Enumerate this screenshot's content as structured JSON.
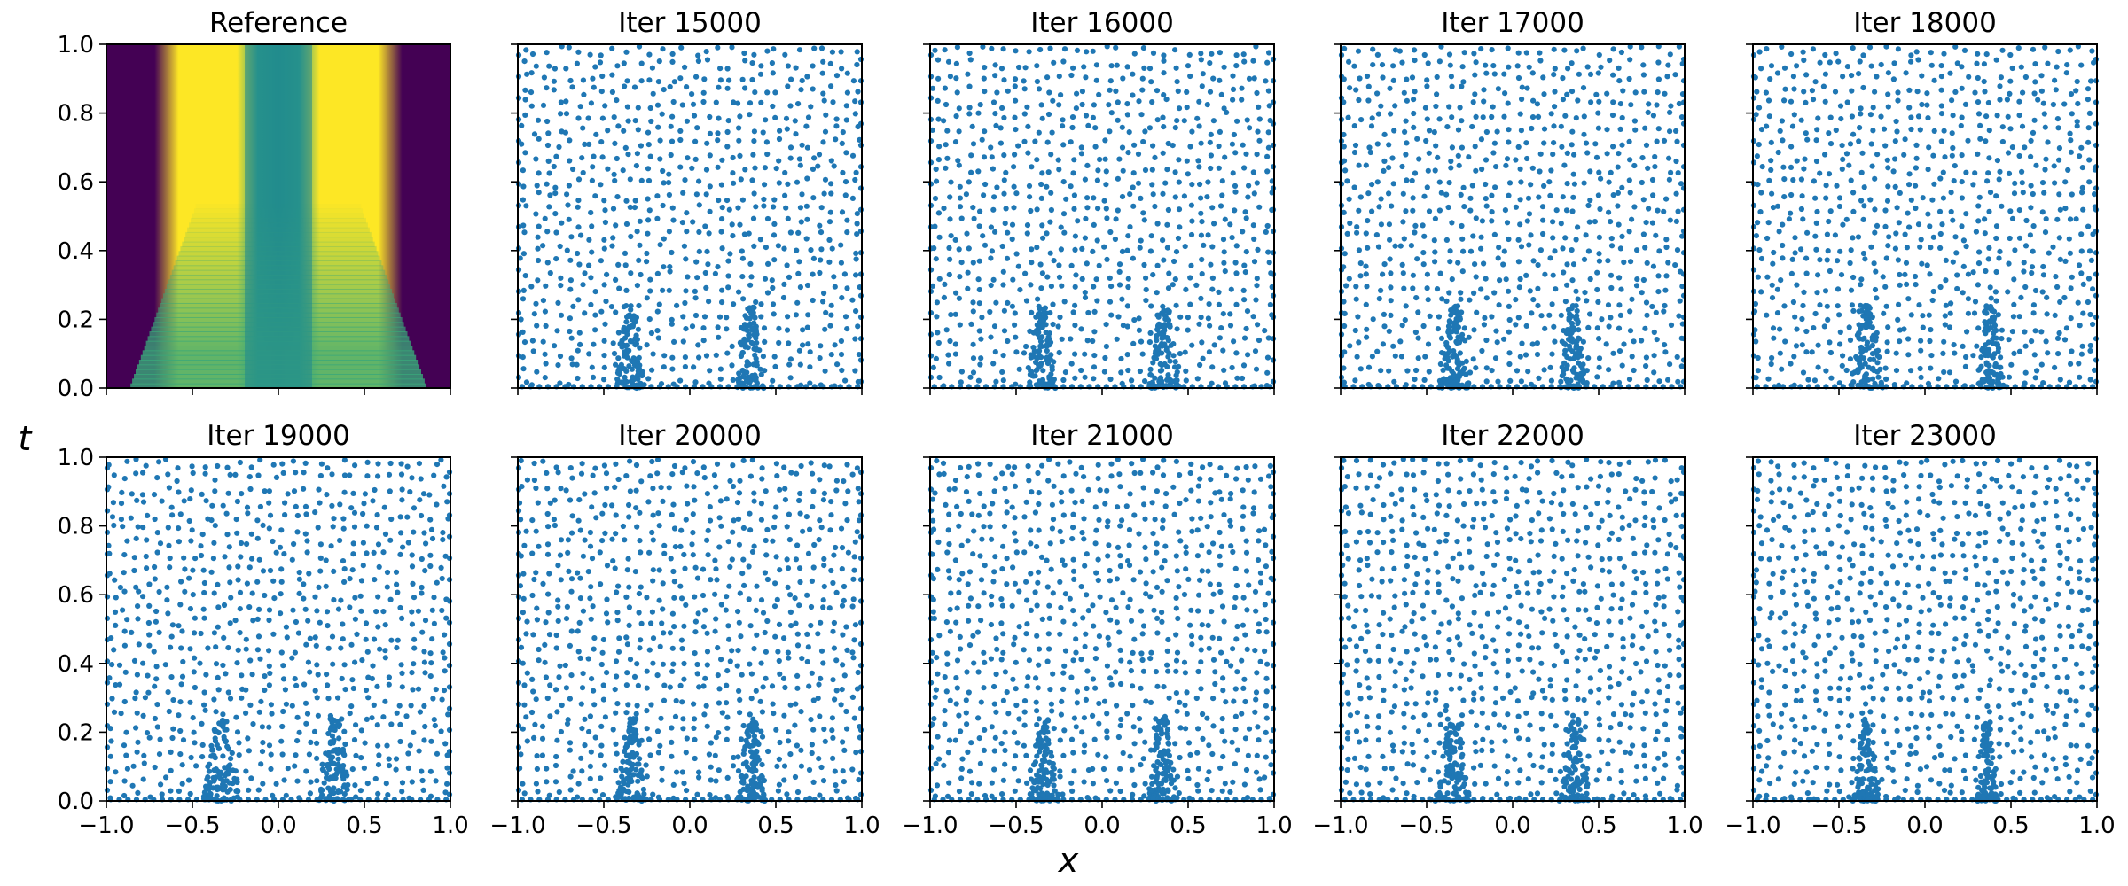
{
  "chart_data": {
    "type": "scatter",
    "layout": "2 rows x 5 columns of panels sharing x and t axes",
    "xlabel": "x",
    "ylabel": "t",
    "xlim": [
      -1.0,
      1.0
    ],
    "ylim": [
      0.0,
      1.0
    ],
    "x_ticks": [
      "−1.0",
      "−0.5",
      "0.0",
      "0.5",
      "1.0"
    ],
    "y_ticks": [
      "0.0",
      "0.2",
      "0.4",
      "0.6",
      "0.8",
      "1.0"
    ],
    "point_color": "#1f77b4",
    "panels": [
      {
        "title": "Reference",
        "type": "heatmap",
        "colormap": "viridis",
        "description": "solution field: two high (yellow) fans spreading from x=±0.35 at t=0 to x≈±0.2..±0.5 at t=1, a mid-level (teal) core around x=0, low (purple) near x=±1"
      },
      {
        "title": "Iter 15000",
        "type": "scatter",
        "clusters": [
          {
            "x": -0.35,
            "spread": 0.09
          },
          {
            "x": 0.35,
            "spread": 0.08
          }
        ]
      },
      {
        "title": "Iter 16000",
        "type": "scatter",
        "clusters": [
          {
            "x": -0.35,
            "spread": 0.09
          },
          {
            "x": 0.36,
            "spread": 0.09
          }
        ]
      },
      {
        "title": "Iter 17000",
        "type": "scatter",
        "clusters": [
          {
            "x": -0.33,
            "spread": 0.1
          },
          {
            "x": 0.35,
            "spread": 0.08
          }
        ]
      },
      {
        "title": "Iter 18000",
        "type": "scatter",
        "clusters": [
          {
            "x": -0.34,
            "spread": 0.1
          },
          {
            "x": 0.38,
            "spread": 0.08
          }
        ]
      },
      {
        "title": "Iter 19000",
        "type": "scatter",
        "clusters": [
          {
            "x": -0.33,
            "spread": 0.11
          },
          {
            "x": 0.33,
            "spread": 0.1
          }
        ]
      },
      {
        "title": "Iter 20000",
        "type": "scatter",
        "clusters": [
          {
            "x": -0.34,
            "spread": 0.09
          },
          {
            "x": 0.36,
            "spread": 0.08
          }
        ]
      },
      {
        "title": "Iter 21000",
        "type": "scatter",
        "clusters": [
          {
            "x": -0.34,
            "spread": 0.09
          },
          {
            "x": 0.35,
            "spread": 0.09
          }
        ]
      },
      {
        "title": "Iter 22000",
        "type": "scatter",
        "clusters": [
          {
            "x": -0.35,
            "spread": 0.1
          },
          {
            "x": 0.36,
            "spread": 0.09
          }
        ]
      },
      {
        "title": "Iter 23000",
        "type": "scatter",
        "clusters": [
          {
            "x": -0.34,
            "spread": 0.08
          },
          {
            "x": 0.36,
            "spread": 0.06
          }
        ]
      }
    ]
  }
}
